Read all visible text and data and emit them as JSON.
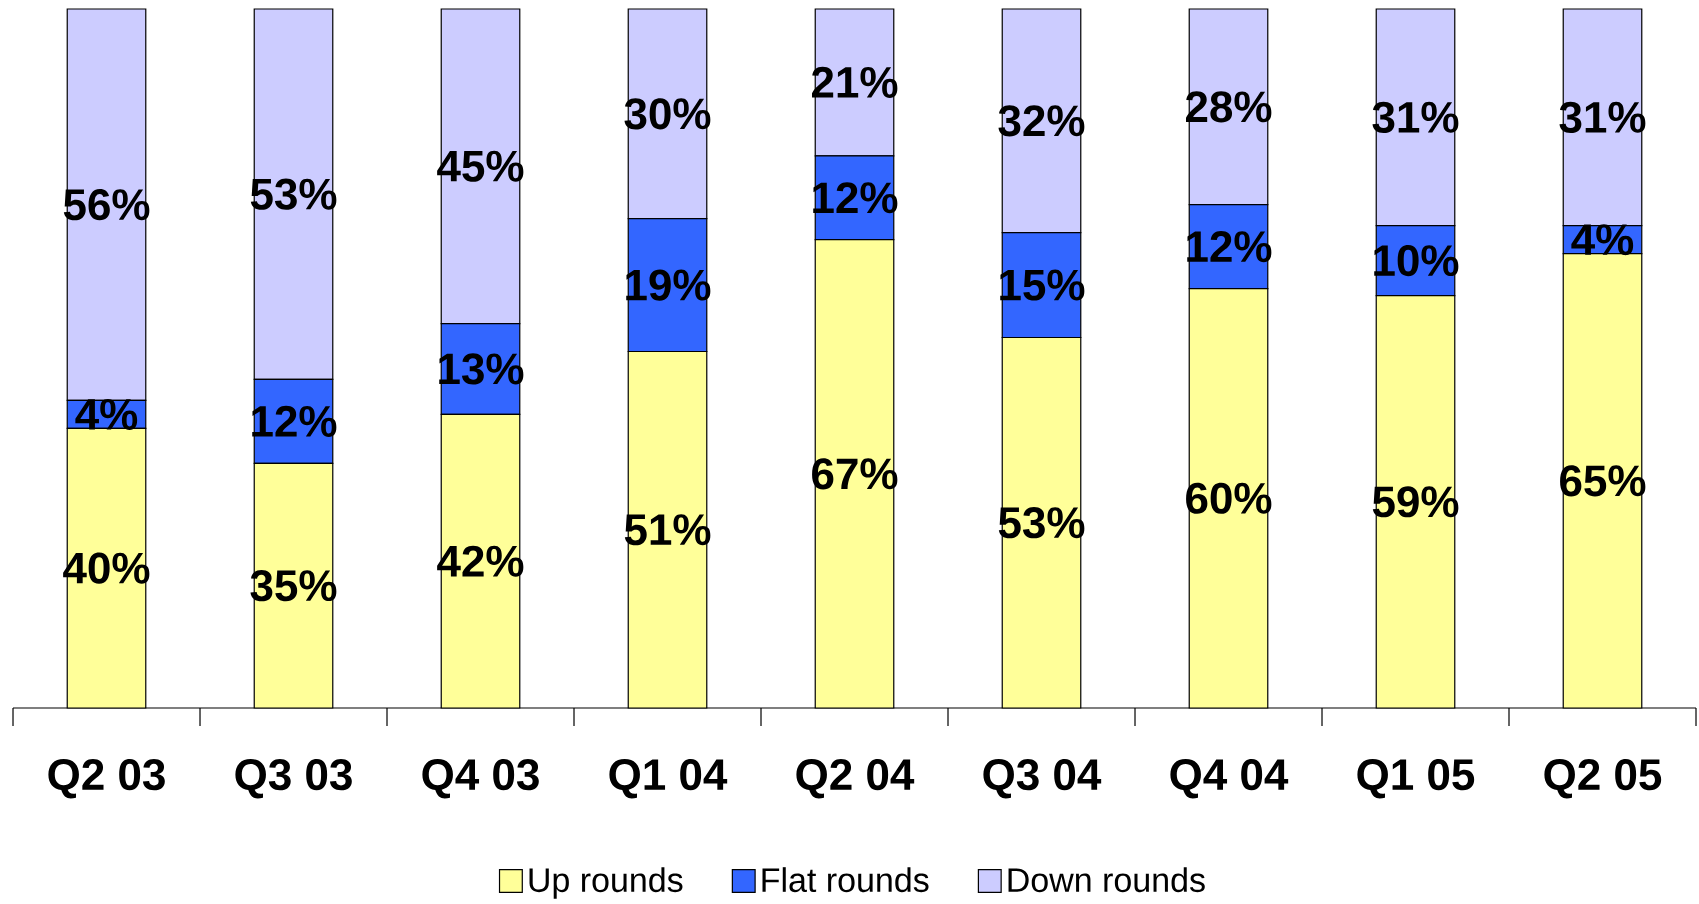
{
  "chart_data": {
    "type": "bar",
    "stacked": true,
    "ylim": [
      0,
      100
    ],
    "categories": [
      "Q2 03",
      "Q3 03",
      "Q4 03",
      "Q1 04",
      "Q2 04",
      "Q3 04",
      "Q4 04",
      "Q1 05",
      "Q2 05"
    ],
    "series": [
      {
        "name": "Up rounds",
        "color": "#ffff99",
        "values": [
          40,
          35,
          42,
          51,
          67,
          53,
          60,
          59,
          65
        ],
        "value_labels": [
          "40%",
          "35%",
          "42%",
          "51%",
          "67%",
          "53%",
          "60%",
          "59%",
          "65%"
        ]
      },
      {
        "name": "Flat rounds",
        "color": "#3366ff",
        "values": [
          4,
          12,
          13,
          19,
          12,
          15,
          12,
          10,
          4
        ],
        "value_labels": [
          "4%",
          "12%",
          "13%",
          "19%",
          "12%",
          "15%",
          "12%",
          "10%",
          "4%"
        ]
      },
      {
        "name": "Down rounds",
        "color": "#ccccff",
        "values": [
          56,
          53,
          45,
          30,
          21,
          32,
          28,
          31,
          31
        ],
        "value_labels": [
          "56%",
          "53%",
          "45%",
          "30%",
          "21%",
          "32%",
          "28%",
          "31%",
          "31%"
        ]
      }
    ],
    "legend": "bottom"
  }
}
